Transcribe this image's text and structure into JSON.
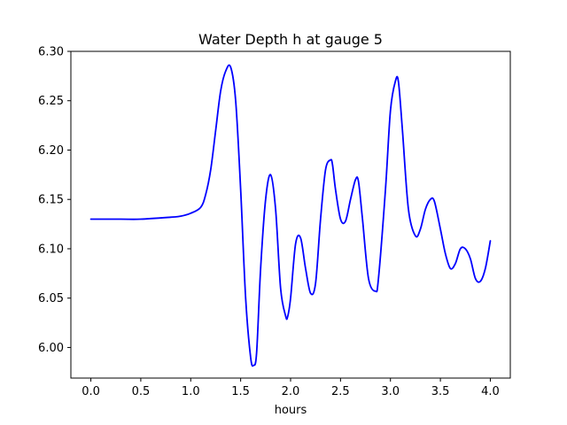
{
  "chart_data": {
    "type": "line",
    "title": "Water Depth h at gauge 5",
    "xlabel": "hours",
    "ylabel": "",
    "xlim": [
      -0.2,
      4.2
    ],
    "ylim": [
      5.969,
      6.3
    ],
    "x_ticks": [
      0.0,
      0.5,
      1.0,
      1.5,
      2.0,
      2.5,
      3.0,
      3.5,
      4.0
    ],
    "x_tick_labels": [
      "0.0",
      "0.5",
      "1.0",
      "1.5",
      "2.0",
      "2.5",
      "3.0",
      "3.5",
      "4.0"
    ],
    "y_ticks": [
      6.0,
      6.05,
      6.1,
      6.15,
      6.2,
      6.25,
      6.3
    ],
    "y_tick_labels": [
      "6.00",
      "6.05",
      "6.10",
      "6.15",
      "6.20",
      "6.25",
      "6.30"
    ],
    "grid": false,
    "legend": "none",
    "series": [
      {
        "color": "#0000ff",
        "x": [
          0.0,
          0.3,
          0.5,
          0.8,
          0.9,
          1.0,
          1.1,
          1.15,
          1.2,
          1.25,
          1.3,
          1.35,
          1.4,
          1.45,
          1.5,
          1.55,
          1.6,
          1.63,
          1.66,
          1.7,
          1.75,
          1.8,
          1.85,
          1.9,
          1.95,
          1.97,
          2.0,
          2.05,
          2.1,
          2.15,
          2.2,
          2.25,
          2.3,
          2.35,
          2.4,
          2.42,
          2.45,
          2.5,
          2.55,
          2.6,
          2.65,
          2.68,
          2.72,
          2.78,
          2.85,
          2.88,
          2.95,
          3.0,
          3.05,
          3.08,
          3.12,
          3.18,
          3.25,
          3.3,
          3.35,
          3.4,
          3.44,
          3.5,
          3.55,
          3.6,
          3.65,
          3.7,
          3.75,
          3.8,
          3.85,
          3.9,
          3.95,
          4.0
        ],
        "y": [
          6.13,
          6.13,
          6.13,
          6.132,
          6.133,
          6.136,
          6.142,
          6.155,
          6.18,
          6.22,
          6.26,
          6.28,
          6.284,
          6.25,
          6.16,
          6.05,
          5.99,
          5.982,
          5.995,
          6.08,
          6.15,
          6.175,
          6.14,
          6.06,
          6.032,
          6.031,
          6.05,
          6.105,
          6.111,
          6.08,
          6.055,
          6.065,
          6.13,
          6.18,
          6.19,
          6.185,
          6.16,
          6.13,
          6.128,
          6.15,
          6.17,
          6.168,
          6.13,
          6.07,
          6.057,
          6.07,
          6.16,
          6.24,
          6.27,
          6.269,
          6.22,
          6.14,
          6.113,
          6.12,
          6.14,
          6.15,
          6.148,
          6.12,
          6.095,
          6.08,
          6.085,
          6.1,
          6.1,
          6.09,
          6.07,
          6.067,
          6.08,
          6.108
        ]
      }
    ]
  }
}
